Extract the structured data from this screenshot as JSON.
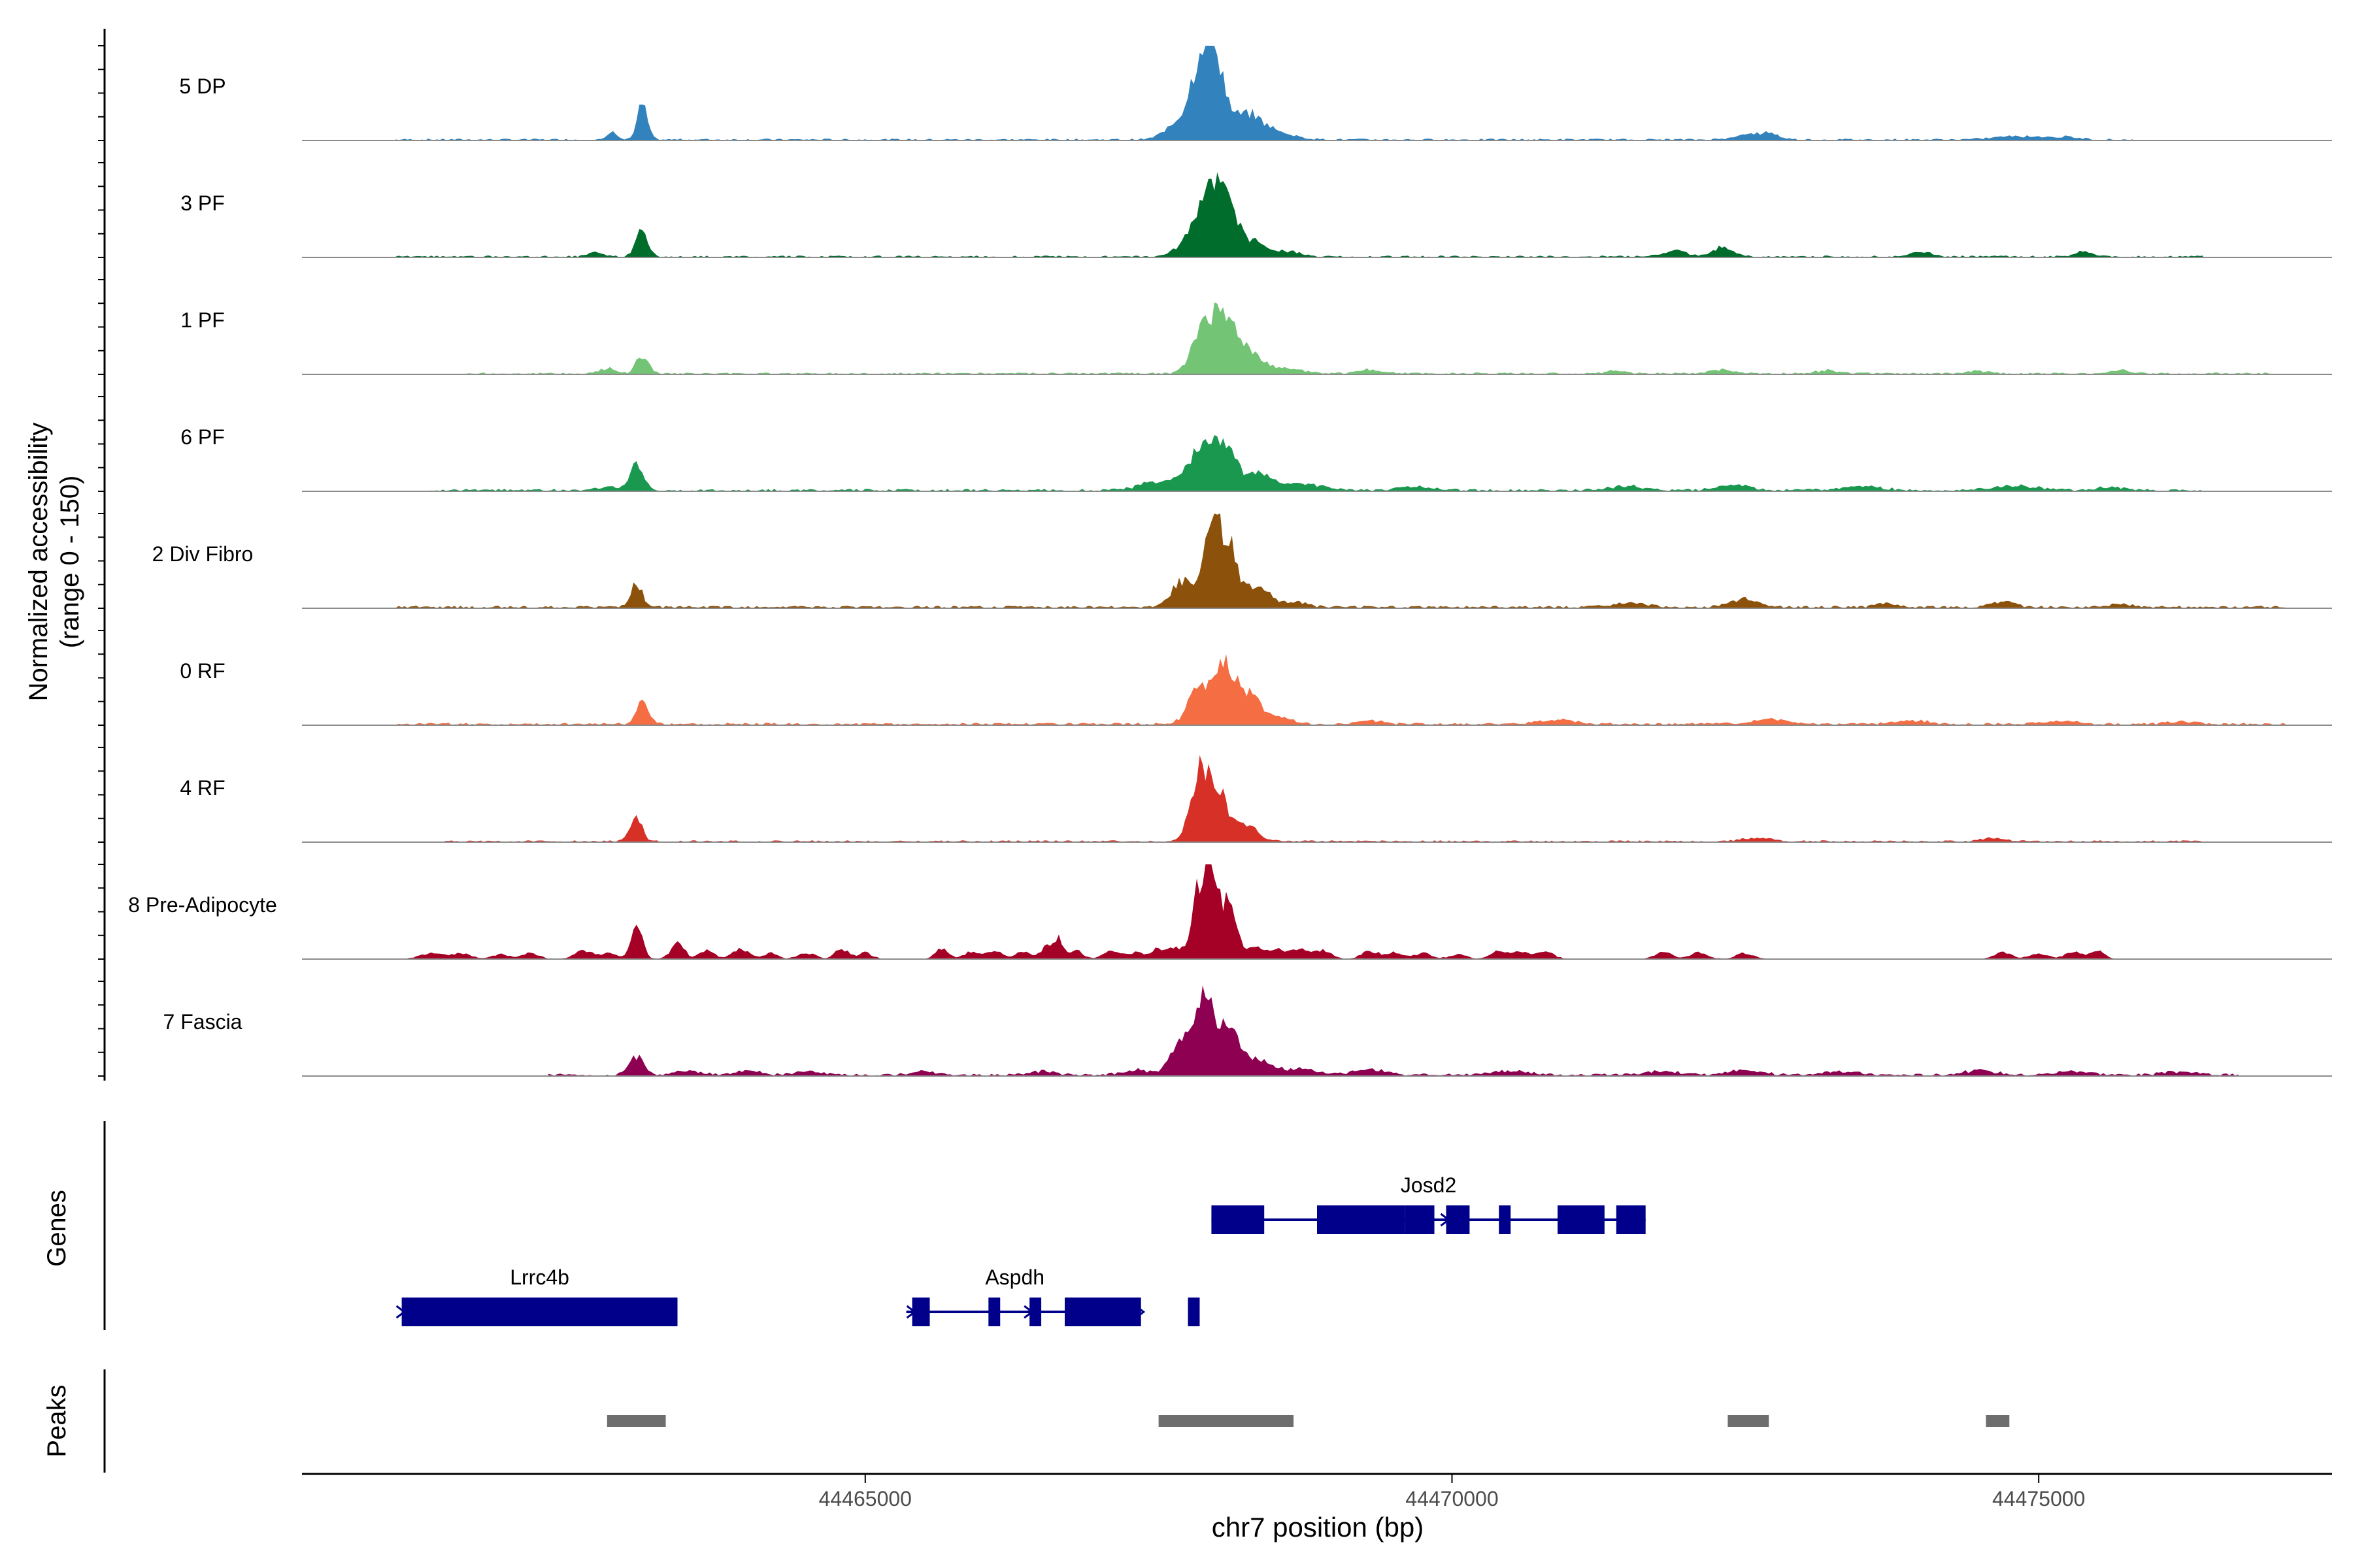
{
  "chart_data": {
    "type": "area",
    "title": "",
    "ylabel_line1": "Normalized accessibility",
    "ylabel_line2": "(range 0 - 150)",
    "genes_label": "Genes",
    "peaks_label": "Peaks",
    "xlabel": "chr7 position (bp)",
    "xlim": [
      44460200,
      44477500
    ],
    "ylim": [
      0,
      150
    ],
    "x_ticks": [
      44465000,
      44470000,
      44475000
    ],
    "x_tick_labels": [
      "44465000",
      "44470000",
      "44475000"
    ],
    "tracks": [
      {
        "name": "5 DP",
        "color": "#3182BD",
        "peaks": [
          [
            44462850,
            15,
            50
          ],
          [
            44463100,
            55,
            60
          ],
          [
            44467650,
            20,
            150
          ],
          [
            44467850,
            65,
            150
          ],
          [
            44467900,
            85,
            120
          ],
          [
            44468000,
            75,
            100
          ],
          [
            44468250,
            40,
            200
          ],
          [
            44468550,
            8,
            200
          ],
          [
            44472500,
            7,
            160
          ],
          [
            44472700,
            9,
            120
          ],
          [
            44474800,
            6,
            250
          ],
          [
            44475200,
            4,
            200
          ]
        ],
        "noise": 3,
        "start": 44461000,
        "end": 44475800
      },
      {
        "name": "3 PF",
        "color": "#006D2C",
        "peaks": [
          [
            44462700,
            8,
            80
          ],
          [
            44463100,
            45,
            70
          ],
          [
            44467800,
            35,
            160
          ],
          [
            44467950,
            95,
            120
          ],
          [
            44468100,
            70,
            110
          ],
          [
            44468300,
            25,
            150
          ],
          [
            44468600,
            8,
            150
          ],
          [
            44471900,
            9,
            150
          ],
          [
            44472300,
            14,
            120
          ],
          [
            44474000,
            8,
            120
          ],
          [
            44475400,
            8,
            110
          ]
        ],
        "noise": 3,
        "start": 44461000,
        "end": 44476400
      },
      {
        "name": "1 PF",
        "color": "#74C476",
        "peaks": [
          [
            44462800,
            8,
            100
          ],
          [
            44463100,
            30,
            70
          ],
          [
            44467900,
            85,
            140
          ],
          [
            44468100,
            70,
            130
          ],
          [
            44468300,
            30,
            150
          ],
          [
            44468600,
            8,
            180
          ],
          [
            44469300,
            6,
            150
          ],
          [
            44471400,
            5,
            100
          ],
          [
            44472300,
            6,
            140
          ],
          [
            44473200,
            5,
            160
          ],
          [
            44474500,
            4,
            140
          ],
          [
            44475700,
            5,
            120
          ]
        ],
        "noise": 3,
        "start": 44461600,
        "end": 44477000
      },
      {
        "name": "6 PF",
        "color": "#1A9850",
        "peaks": [
          [
            44462800,
            6,
            120
          ],
          [
            44463050,
            42,
            80
          ],
          [
            44467500,
            15,
            200
          ],
          [
            44467850,
            55,
            160
          ],
          [
            44468050,
            65,
            140
          ],
          [
            44468350,
            25,
            180
          ],
          [
            44468750,
            10,
            200
          ],
          [
            44469700,
            6,
            200
          ],
          [
            44471500,
            7,
            200
          ],
          [
            44472400,
            9,
            180
          ],
          [
            44473500,
            6,
            250
          ],
          [
            44474800,
            7,
            250
          ],
          [
            44475600,
            5,
            150
          ]
        ],
        "noise": 4,
        "start": 44461300,
        "end": 44476400
      },
      {
        "name": "2 Div Fibro",
        "color": "#8C510A",
        "peaks": [
          [
            44463050,
            38,
            70
          ],
          [
            44467700,
            40,
            130
          ],
          [
            44467950,
            130,
            110
          ],
          [
            44468100,
            85,
            110
          ],
          [
            44468350,
            35,
            140
          ],
          [
            44468650,
            8,
            150
          ],
          [
            44471500,
            6,
            200
          ],
          [
            44472500,
            12,
            180
          ],
          [
            44473700,
            6,
            120
          ],
          [
            44474700,
            10,
            130
          ],
          [
            44475700,
            5,
            150
          ]
        ],
        "noise": 4,
        "start": 44461000,
        "end": 44477100
      },
      {
        "name": "0 RF",
        "color": "#F46D43",
        "peaks": [
          [
            44463100,
            35,
            75
          ],
          [
            44467850,
            60,
            130
          ],
          [
            44468050,
            100,
            110
          ],
          [
            44468250,
            50,
            130
          ],
          [
            44468500,
            12,
            160
          ],
          [
            44469300,
            6,
            150
          ],
          [
            44470900,
            7,
            200
          ],
          [
            44472700,
            7,
            220
          ],
          [
            44473900,
            6,
            200
          ],
          [
            44475200,
            5,
            180
          ],
          [
            44476200,
            4,
            150
          ]
        ],
        "noise": 4,
        "start": 44461000,
        "end": 44477100
      },
      {
        "name": "4 RF",
        "color": "#D73027",
        "peaks": [
          [
            44463050,
            38,
            70
          ],
          [
            44467850,
            100,
            110
          ],
          [
            44468000,
            75,
            120
          ],
          [
            44468250,
            25,
            140
          ],
          [
            44472600,
            6,
            160
          ],
          [
            44474600,
            5,
            130
          ]
        ],
        "noise": 3,
        "start": 44461300,
        "end": 44476400
      },
      {
        "name": "8 Pre-Adipocyte",
        "color": "#A50026",
        "peaks": [
          [
            44461300,
            9,
            120
          ],
          [
            44461550,
            9,
            120
          ],
          [
            44461900,
            7,
            100
          ],
          [
            44462150,
            9,
            100
          ],
          [
            44462600,
            12,
            100
          ],
          [
            44462800,
            9,
            100
          ],
          [
            44463050,
            50,
            70
          ],
          [
            44463400,
            25,
            80
          ],
          [
            44463650,
            15,
            80
          ],
          [
            44463900,
            12,
            80
          ],
          [
            44464000,
            9,
            80
          ],
          [
            44464200,
            9,
            80
          ],
          [
            44464500,
            9,
            100
          ],
          [
            44464800,
            16,
            80
          ],
          [
            44465000,
            10,
            80
          ],
          [
            44465650,
            15,
            80
          ],
          [
            44465900,
            11,
            80
          ],
          [
            44466100,
            14,
            100
          ],
          [
            44466350,
            12,
            80
          ],
          [
            44466550,
            20,
            80
          ],
          [
            44466650,
            30,
            60
          ],
          [
            44466800,
            12,
            80
          ],
          [
            44467100,
            12,
            100
          ],
          [
            44467300,
            9,
            100
          ],
          [
            44467500,
            14,
            100
          ],
          [
            44467650,
            16,
            100
          ],
          [
            44467850,
            110,
            90
          ],
          [
            44467950,
            150,
            70
          ],
          [
            44468100,
            100,
            80
          ],
          [
            44468300,
            20,
            100
          ],
          [
            44468500,
            15,
            100
          ],
          [
            44468700,
            17,
            100
          ],
          [
            44468900,
            13,
            100
          ],
          [
            44469300,
            12,
            100
          ],
          [
            44469500,
            11,
            100
          ],
          [
            44469750,
            9,
            100
          ],
          [
            44470050,
            7,
            100
          ],
          [
            44470400,
            14,
            100
          ],
          [
            44470600,
            11,
            100
          ],
          [
            44470800,
            10,
            100
          ],
          [
            44471800,
            10,
            100
          ],
          [
            44472100,
            10,
            100
          ],
          [
            44472500,
            9,
            100
          ],
          [
            44474700,
            10,
            100
          ],
          [
            44475000,
            9,
            100
          ],
          [
            44475300,
            11,
            100
          ],
          [
            44475500,
            13,
            80
          ]
        ],
        "noise": 1,
        "start": 44461100,
        "end": 44475800
      },
      {
        "name": "7 Fascia",
        "color": "#8E0152",
        "peaks": [
          [
            44463050,
            28,
            90
          ],
          [
            44463500,
            6,
            150
          ],
          [
            44464000,
            7,
            150
          ],
          [
            44464500,
            6,
            150
          ],
          [
            44465500,
            6,
            150
          ],
          [
            44466500,
            6,
            150
          ],
          [
            44467300,
            8,
            150
          ],
          [
            44467700,
            55,
            130
          ],
          [
            44467900,
            110,
            120
          ],
          [
            44468100,
            70,
            120
          ],
          [
            44468350,
            25,
            150
          ],
          [
            44468700,
            10,
            200
          ],
          [
            44469300,
            8,
            200
          ],
          [
            44470500,
            7,
            200
          ],
          [
            44471800,
            6,
            200
          ],
          [
            44472500,
            7,
            200
          ],
          [
            44473300,
            6,
            200
          ],
          [
            44474500,
            7,
            200
          ],
          [
            44475300,
            6,
            200
          ],
          [
            44476200,
            5,
            200
          ]
        ],
        "noise": 4,
        "start": 44462300,
        "end": 44476700
      }
    ],
    "genes": [
      {
        "name": "Josd2",
        "row": 0,
        "start": 44467950,
        "end": 44471650,
        "exons": [
          [
            44467950,
            44468400
          ],
          [
            44468850,
            44469600
          ],
          [
            44469600,
            44469850
          ],
          [
            44469950,
            44470150
          ],
          [
            44470400,
            44470500
          ],
          [
            44470900,
            44471300
          ],
          [
            44471400,
            44471650
          ]
        ],
        "arrows": [
          44468000,
          44469950
        ]
      },
      {
        "name": "Lrrc4b",
        "row": 1,
        "start": 44461050,
        "end": 44463400,
        "exons": [
          [
            44461050,
            44463400
          ]
        ],
        "arrows": [
          44461050
        ]
      },
      {
        "name": "Aspdh",
        "row": 1,
        "start": 44465350,
        "end": 44467200,
        "exons": [
          [
            44465400,
            44465550
          ],
          [
            44466050,
            44466150
          ],
          [
            44466400,
            44466500
          ],
          [
            44466700,
            44467350
          ],
          [
            44467750,
            44467850
          ]
        ],
        "arrows": [
          44465400,
          44466400,
          44467350
        ]
      }
    ],
    "peaks": [
      [
        44462800,
        44463300
      ],
      [
        44467500,
        44468650
      ],
      [
        44472350,
        44472700
      ],
      [
        44474550,
        44474750
      ]
    ]
  }
}
